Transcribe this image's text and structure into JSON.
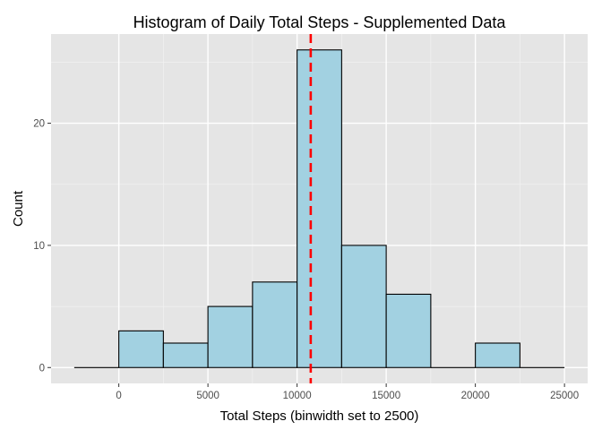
{
  "chart_data": {
    "type": "bar",
    "title": "Histogram of Daily Total Steps - Supplemented Data",
    "xlabel": "Total Steps (binwidth set to 2500)",
    "ylabel": "Count",
    "binwidth": 2500,
    "bins": [
      {
        "start": -2500,
        "end": 0,
        "count": 0
      },
      {
        "start": 0,
        "end": 2500,
        "count": 3
      },
      {
        "start": 2500,
        "end": 5000,
        "count": 2
      },
      {
        "start": 5000,
        "end": 7500,
        "count": 5
      },
      {
        "start": 7500,
        "end": 10000,
        "count": 7
      },
      {
        "start": 10000,
        "end": 12500,
        "count": 26
      },
      {
        "start": 12500,
        "end": 15000,
        "count": 10
      },
      {
        "start": 15000,
        "end": 17500,
        "count": 6
      },
      {
        "start": 17500,
        "end": 20000,
        "count": 0
      },
      {
        "start": 20000,
        "end": 22500,
        "count": 2
      },
      {
        "start": 22500,
        "end": 25000,
        "count": 0
      }
    ],
    "reference_line": {
      "x": 10766,
      "style": "dashed",
      "color": "#ff0000"
    },
    "xlim": [
      -3800,
      26300
    ],
    "ylim": [
      -1.3,
      27.3
    ],
    "x_ticks": [
      0,
      5000,
      10000,
      15000,
      20000,
      25000
    ],
    "y_ticks": [
      0,
      10,
      20
    ],
    "grid": true,
    "colors": {
      "panel": "#e5e5e5",
      "grid_major": "#ffffff",
      "grid_minor": "#f2f2f2",
      "bar_fill": "#a2d1e1",
      "bar_stroke": "#000000"
    }
  }
}
